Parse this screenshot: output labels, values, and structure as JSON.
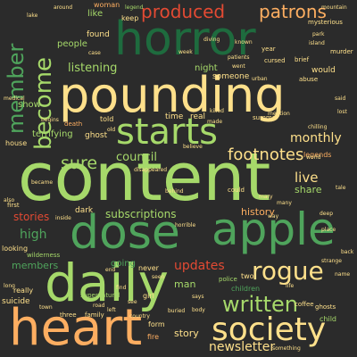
{
  "palette": {
    "background": "#2b2b2b",
    "dark_green": "#1e6b3e",
    "green": "#4fa45c",
    "light_green": "#a6d96a",
    "pale_yellow": "#fee08b",
    "orange": "#fdae61",
    "red": "#e34a33"
  },
  "words": {
    "content": "content",
    "pounding": "pounding",
    "heart": "heart",
    "daily": "daily",
    "dose": "dose",
    "apple": "apple",
    "horror": "horror",
    "starts": "starts",
    "society": "society",
    "produced": "produced",
    "patrons": "patrons",
    "rogue": "rogue",
    "written": "written",
    "become": "become",
    "member": "member",
    "sure": "sure",
    "footnotes": "footnotes",
    "newsletter": "newsletter",
    "listening": "listening",
    "monthly": "monthly",
    "council": "council",
    "subscriptions": "subscriptions",
    "updates": "updates",
    "members": "members",
    "high": "high",
    "stories": "stories",
    "live": "live",
    "share": "share",
    "story": "story",
    "history": "history",
    "terrifying": "terrifying",
    "going": "going",
    "ghost": "ghost",
    "real": "real",
    "time": "time",
    "night": "night",
    "someone": "someone",
    "people": "people",
    "like": "like",
    "keep": "keep",
    "found": "found",
    "would": "would",
    "man": "man",
    "show": "show",
    "death": "death",
    "house": "house",
    "dark": "dark",
    "legends": "legends",
    "told": "told",
    "supernatural": "supernatural",
    "looking": "looking",
    "wilderness": "wilderness",
    "never": "never",
    "really": "really",
    "suicide": "suicide",
    "family": "family",
    "three": "three",
    "fire": "fire",
    "form": "form",
    "two": "two",
    "children": "children",
    "girl": "girl",
    "coffee": "coffee",
    "ghosts": "ghosts",
    "child": "child",
    "murder": "murder",
    "abuse": "abuse",
    "brief": "brief",
    "woman": "woman",
    "around": "around",
    "legend": "legend",
    "mysterious": "mysterious",
    "year": "year",
    "summer": "summer",
    "first": "first",
    "lake": "lake",
    "police": "police",
    "could": "could",
    "believe": "believe",
    "world": "world",
    "urban": "urban",
    "cursed": "cursed",
    "known": "known",
    "case": "case",
    "inside": "inside",
    "seen": "seen",
    "long": "long",
    "mention": "mention",
    "park": "park",
    "deep": "deep",
    "diving": "diving",
    "mary": "mary",
    "chilling": "chilling",
    "buried": "buried",
    "something": "something",
    "old": "old",
    "many": "many",
    "also": "also",
    "end": "end",
    "find": "find",
    "see": "see",
    "left": "left",
    "way": "way",
    "place": "place",
    "tale": "tale",
    "back": "back",
    "name": "name",
    "life": "life",
    "says": "says",
    "road": "road",
    "town": "town",
    "body": "body",
    "week": "week",
    "went": "went",
    "killed": "killed",
    "made": "made",
    "said": "said",
    "lost": "lost",
    "country": "country",
    "behind": "behind",
    "medical": "medical",
    "begins": "begins",
    "became": "became",
    "patients": "patients",
    "mountain": "mountain",
    "disappeared": "disappeared",
    "island": "island",
    "horrible": "horrible",
    "strange": "strange"
  }
}
